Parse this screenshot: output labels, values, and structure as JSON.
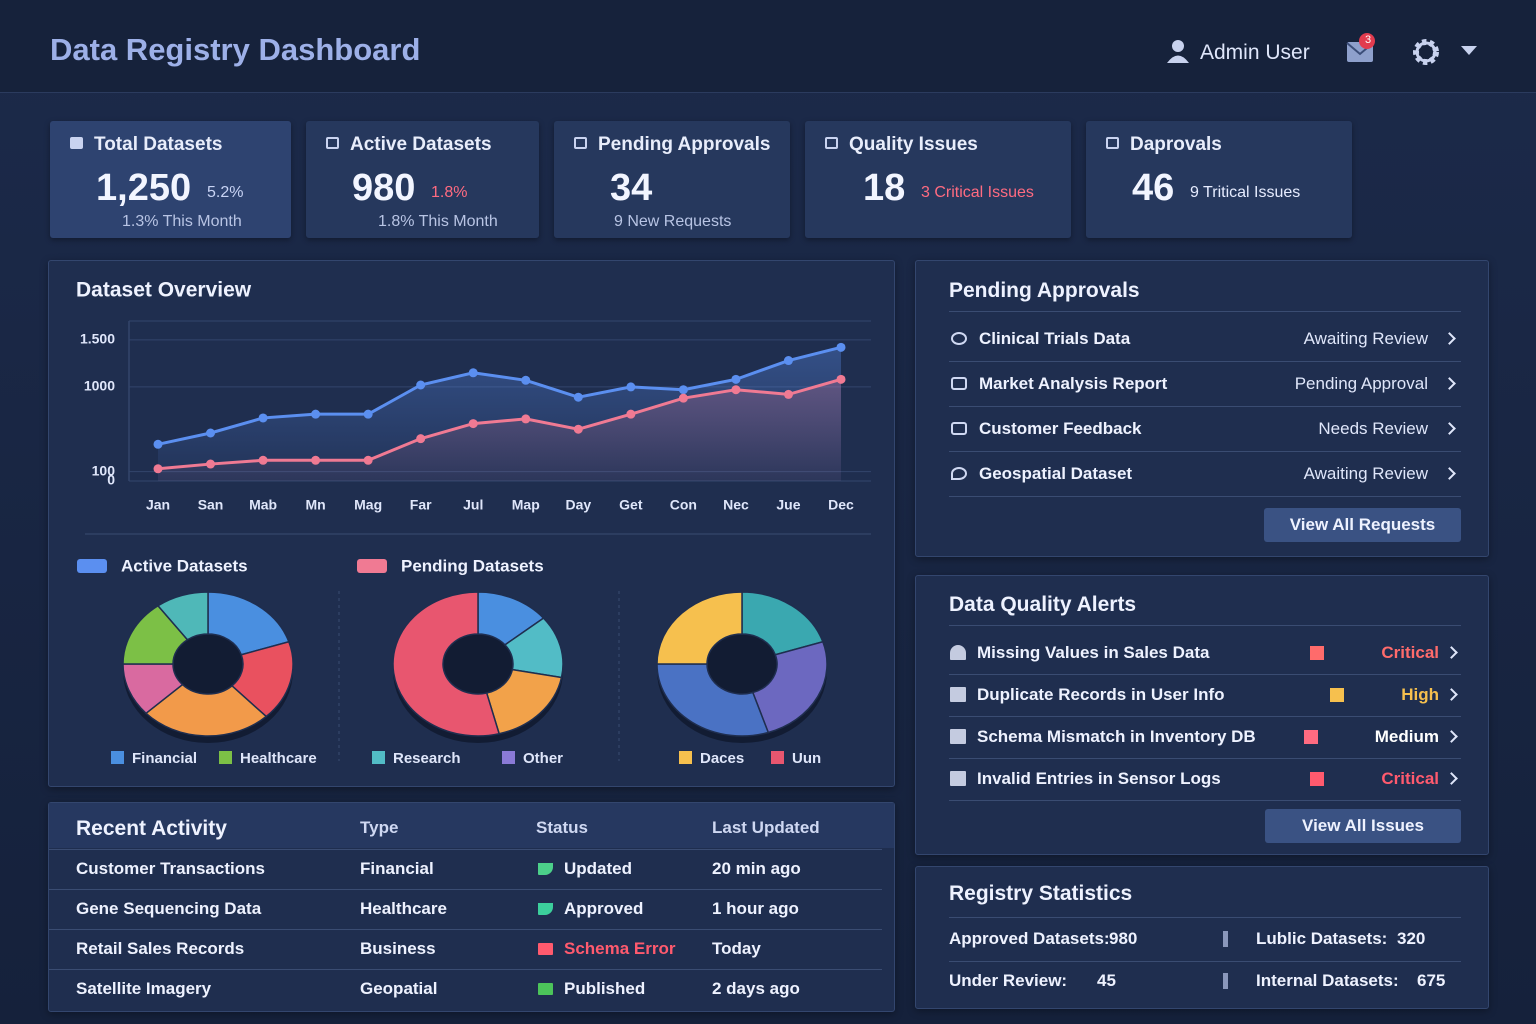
{
  "header": {
    "title": "Data Registry Dashboard",
    "user": "Admin User",
    "notifications": "3"
  },
  "kpis": [
    {
      "title": "Total Datasets",
      "value": "1,250",
      "change": "5.2%",
      "change_color": "#c9d4f5",
      "sub": "1.3% This Month"
    },
    {
      "title": "Active Datasets",
      "value": "980",
      "change": "1.8%",
      "change_color": "#ff6b81",
      "sub": "1.8% This Month"
    },
    {
      "title": "Pending Approvals",
      "value": "34",
      "sub": "9 New Requests"
    },
    {
      "title": "Quality Issues",
      "value": "18",
      "change": "3 Critical Issues",
      "change_color": "#ff6b81"
    },
    {
      "title": "Daprovals",
      "value": "46",
      "change": "9 Tritical Issues",
      "change_color": "#e6ecff"
    }
  ],
  "chart_data": [
    {
      "type": "line",
      "title": "Dataset Overview",
      "categories": [
        "Jan",
        "San",
        "Mab",
        "Mn",
        "Mag",
        "Far",
        "Jul",
        "Map",
        "Day",
        "Get",
        "Con",
        "Nec",
        "Jue",
        "Dec"
      ],
      "series": [
        {
          "name": "Active Datasets",
          "color": "#5b8ff0",
          "values": [
            390,
            510,
            670,
            710,
            710,
            1020,
            1150,
            1070,
            890,
            1000,
            970,
            1080,
            1280,
            1420
          ]
        },
        {
          "name": "Pending Datasets",
          "color": "#f07a93",
          "values": [
            130,
            180,
            220,
            220,
            220,
            450,
            610,
            660,
            550,
            710,
            880,
            970,
            920,
            1080
          ]
        }
      ],
      "ylim": [
        0,
        1700
      ],
      "yticks": [
        0,
        100,
        1000,
        {
          "value": 1500,
          "label": "1.500"
        }
      ],
      "grid": true
    },
    {
      "type": "pie",
      "categories": [
        null,
        null,
        null,
        null,
        null,
        null
      ],
      "values": [
        20,
        18,
        25,
        12,
        15,
        10
      ],
      "colors": [
        "#4a8fe0",
        "#e9515f",
        "#f29a4a",
        "#d96aa0",
        "#7cc046",
        "#4fb8b8"
      ],
      "legend": [
        {
          "label": "Financial",
          "color": "#4a8fe0"
        },
        {
          "label": "Healthcare",
          "color": "#7cc046"
        }
      ]
    },
    {
      "type": "pie",
      "categories": [
        null,
        null,
        null,
        null
      ],
      "values": [
        14,
        14,
        18,
        54
      ],
      "colors": [
        "#4a8fe0",
        "#52bcc6",
        "#f2a24a",
        "#e8566f"
      ],
      "legend": [
        {
          "label": "Research",
          "color": "#52bcc6"
        },
        {
          "label": "Other",
          "color": "#8a7ad6"
        }
      ]
    },
    {
      "type": "pie",
      "categories": [
        null,
        null,
        null,
        null
      ],
      "values": [
        20,
        25,
        30,
        25
      ],
      "colors": [
        "#3aa8b0",
        "#6c68c0",
        "#4a72c4",
        "#f6c04e"
      ],
      "legend": [
        {
          "label": "Daces",
          "color": "#f6c04e"
        },
        {
          "label": "Uun",
          "color": "#e8566f"
        }
      ]
    }
  ],
  "pending": {
    "title": "Pending Approvals",
    "button": "View All Requests",
    "items": [
      {
        "name": "Clinical Trials Data",
        "status": "Awaiting Review"
      },
      {
        "name": "Market Analysis Report",
        "status": "Pending Approval"
      },
      {
        "name": "Customer Feedback",
        "status": "Needs Review"
      },
      {
        "name": "Geospatial Dataset",
        "status": "Awaiting Review"
      }
    ]
  },
  "alerts": {
    "title": "Data Quality Alerts",
    "button": "View All Issues",
    "items": [
      {
        "name": "Missing Values in Sales Data",
        "level": "Critical",
        "color": "#ff6b6b"
      },
      {
        "name": "Duplicate Records in User Info",
        "level": "High",
        "color": "#f6c04e"
      },
      {
        "name": "Schema Mismatch in Inventory DB",
        "level": "Medium",
        "color": "#ff6b81"
      },
      {
        "name": "Invalid Entries in Sensor Logs",
        "level": "Critical",
        "color": "#ff5a6e"
      }
    ]
  },
  "activity": {
    "title": "Recent Activity",
    "columns": [
      "Type",
      "Status",
      "Last Updated"
    ],
    "rows": [
      {
        "name": "Customer Transactions",
        "type": "Financial",
        "status": "Updated",
        "status_color": "#4cd08a",
        "time": "20 min ago"
      },
      {
        "name": "Gene Sequencing Data",
        "type": "Healthcare",
        "status": "Approved",
        "status_color": "#3ccf9c",
        "time": "1 hour ago"
      },
      {
        "name": "Retail Sales Records",
        "type": "Business",
        "status": "Schema Error",
        "status_color": "#ff5a6e",
        "time": "Today"
      },
      {
        "name": "Satellite Imagery",
        "type": "Geopatial",
        "status": "Published",
        "status_color": "#4cc45a",
        "time": "2 days ago"
      }
    ]
  },
  "stats": {
    "title": "Registry Statistics",
    "items": [
      {
        "label": "Approved Datasets:",
        "value": "980"
      },
      {
        "label": "Lublic Datasets:",
        "value": "320"
      },
      {
        "label": "Under Review:",
        "value": "45"
      },
      {
        "label": "Internal Datasets:",
        "value": "675"
      }
    ]
  }
}
